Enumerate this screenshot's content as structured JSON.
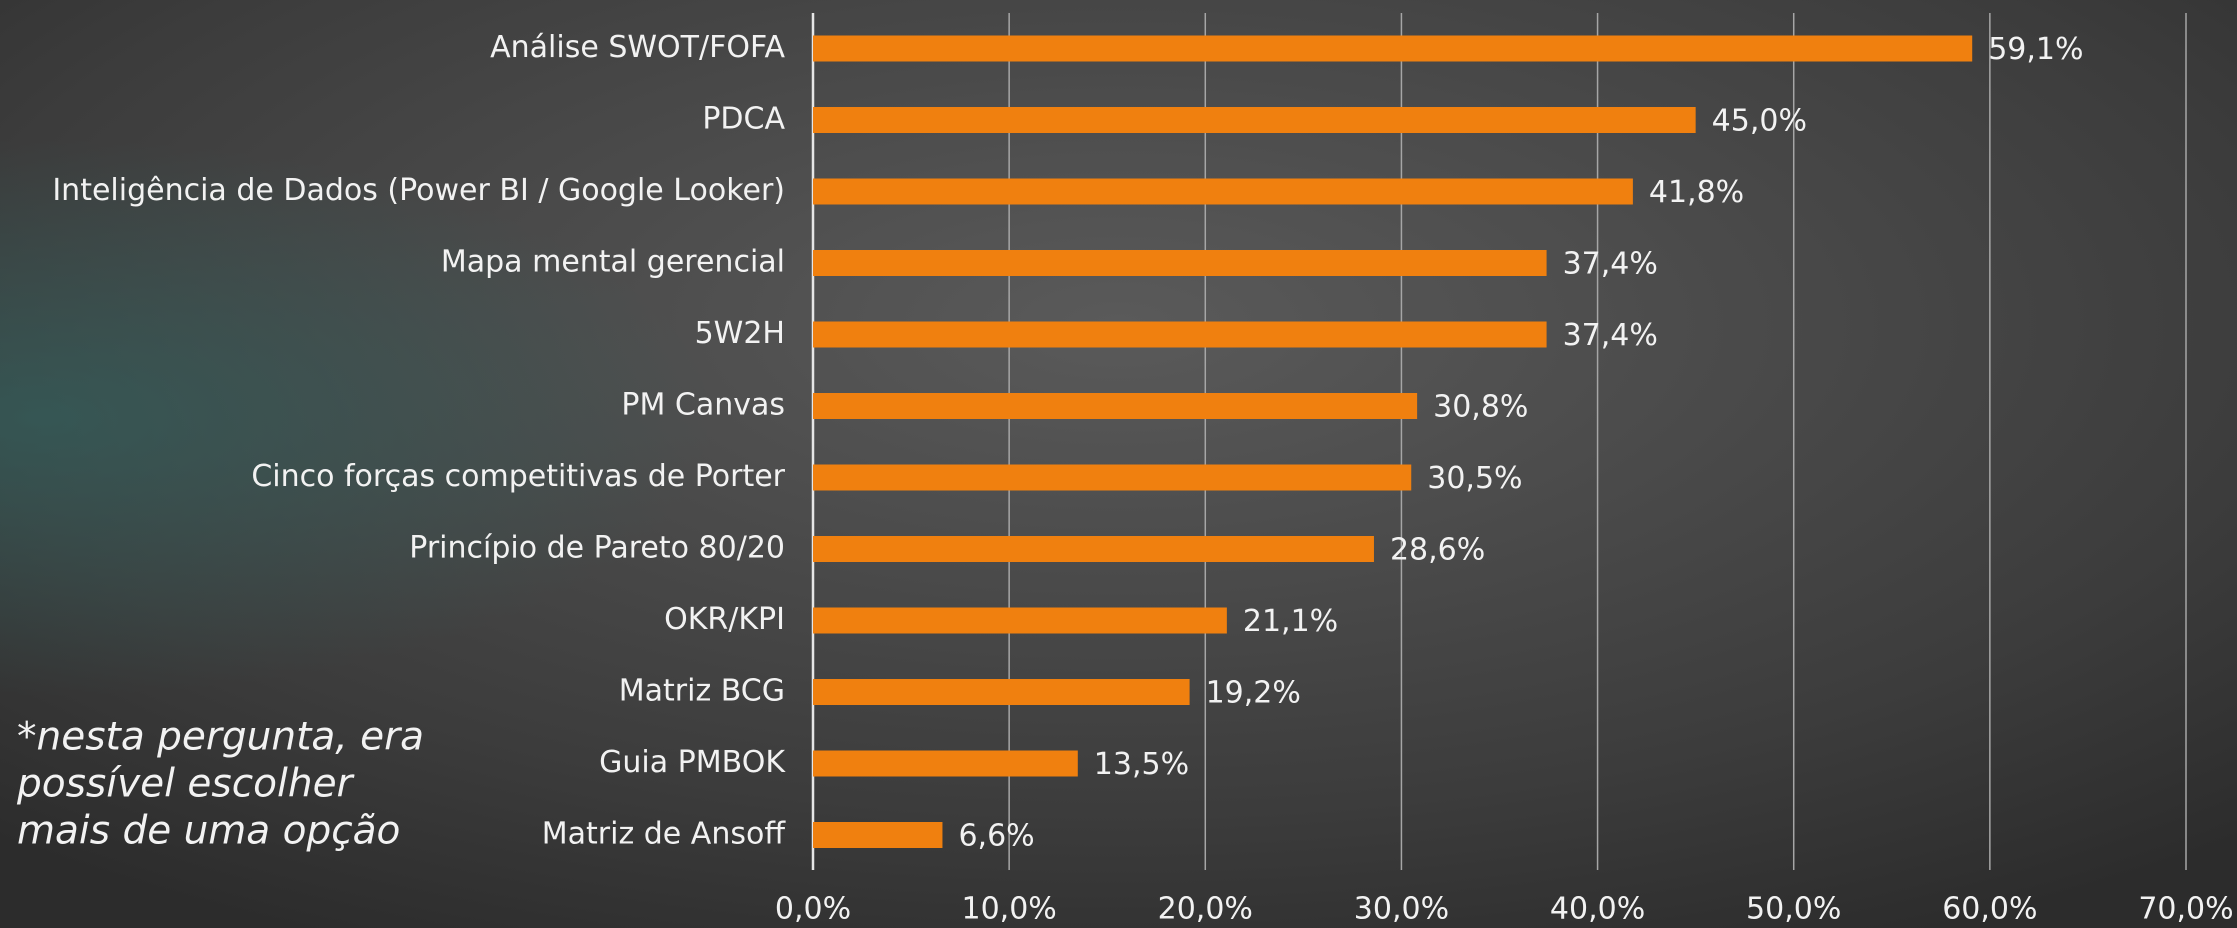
{
  "chart_data": {
    "type": "bar",
    "orientation": "horizontal",
    "categories": [
      "Análise SWOT/FOFA",
      "PDCA",
      "Inteligência de Dados (Power BI / Google Looker)",
      "Mapa mental gerencial",
      "5W2H",
      "PM Canvas",
      "Cinco forças competitivas de Porter",
      "Princípio de Pareto 80/20",
      "OKR/KPI",
      "Matriz BCG",
      "Guia PMBOK",
      "Matriz de Ansoff"
    ],
    "values": [
      59.1,
      45.0,
      41.8,
      37.4,
      37.4,
      30.8,
      30.5,
      28.6,
      21.1,
      19.2,
      13.5,
      6.6
    ],
    "value_labels": [
      "59,1%",
      "45,0%",
      "41,8%",
      "37,4%",
      "37,4%",
      "30,8%",
      "30,5%",
      "28,6%",
      "21,1%",
      "19,2%",
      "13,5%",
      "6,6%"
    ],
    "color": "#f0800f",
    "xlim": [
      0,
      70
    ],
    "xticks": [
      {
        "value": 0,
        "label": "0,0%"
      },
      {
        "value": 10,
        "label": "10,0%"
      },
      {
        "value": 20,
        "label": "20,0%"
      },
      {
        "value": 30,
        "label": "30,0%"
      },
      {
        "value": 40,
        "label": "40,0%"
      },
      {
        "value": 50,
        "label": "50,0%"
      },
      {
        "value": 60,
        "label": "60,0%"
      },
      {
        "value": 70,
        "label": "70,0%"
      }
    ],
    "grid": true,
    "annotation": [
      "*nesta pergunta, era",
      "possível escolher",
      "mais de uma opção"
    ]
  }
}
